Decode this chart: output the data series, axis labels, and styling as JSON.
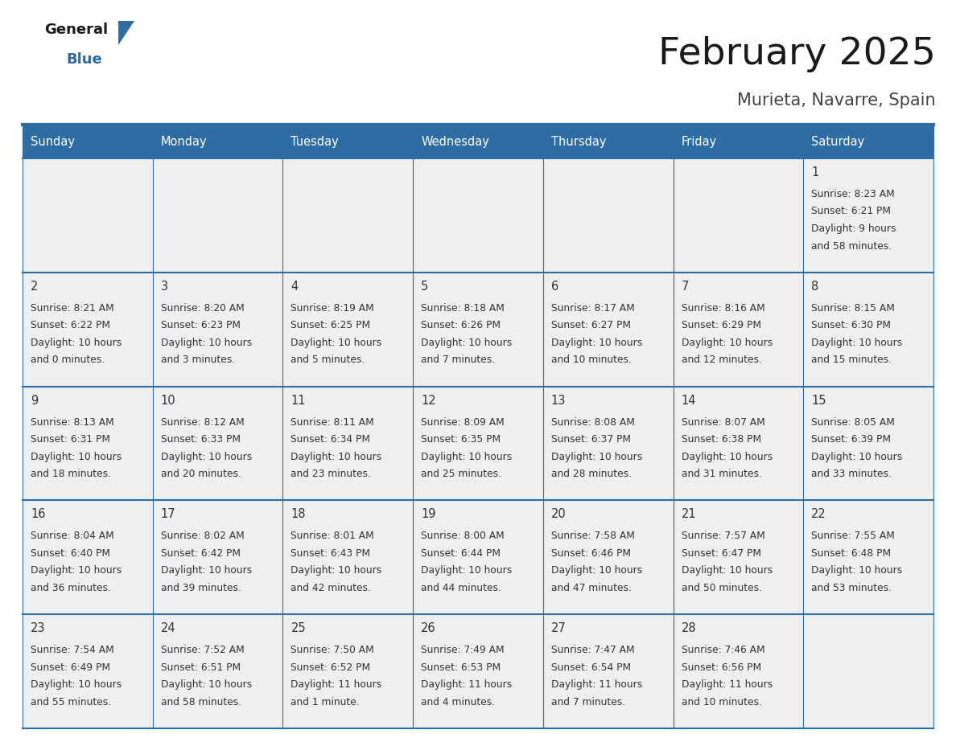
{
  "title": "February 2025",
  "subtitle": "Murieta, Navarre, Spain",
  "header_bg": "#2E6DA4",
  "header_text_color": "#FFFFFF",
  "cell_bg": "#EFEFEF",
  "day_number_color": "#333333",
  "text_color": "#333333",
  "border_color": "#2E6DA4",
  "days_of_week": [
    "Sunday",
    "Monday",
    "Tuesday",
    "Wednesday",
    "Thursday",
    "Friday",
    "Saturday"
  ],
  "weeks": [
    [
      {
        "day": null,
        "info": null
      },
      {
        "day": null,
        "info": null
      },
      {
        "day": null,
        "info": null
      },
      {
        "day": null,
        "info": null
      },
      {
        "day": null,
        "info": null
      },
      {
        "day": null,
        "info": null
      },
      {
        "day": 1,
        "info": "Sunrise: 8:23 AM\nSunset: 6:21 PM\nDaylight: 9 hours\nand 58 minutes."
      }
    ],
    [
      {
        "day": 2,
        "info": "Sunrise: 8:21 AM\nSunset: 6:22 PM\nDaylight: 10 hours\nand 0 minutes."
      },
      {
        "day": 3,
        "info": "Sunrise: 8:20 AM\nSunset: 6:23 PM\nDaylight: 10 hours\nand 3 minutes."
      },
      {
        "day": 4,
        "info": "Sunrise: 8:19 AM\nSunset: 6:25 PM\nDaylight: 10 hours\nand 5 minutes."
      },
      {
        "day": 5,
        "info": "Sunrise: 8:18 AM\nSunset: 6:26 PM\nDaylight: 10 hours\nand 7 minutes."
      },
      {
        "day": 6,
        "info": "Sunrise: 8:17 AM\nSunset: 6:27 PM\nDaylight: 10 hours\nand 10 minutes."
      },
      {
        "day": 7,
        "info": "Sunrise: 8:16 AM\nSunset: 6:29 PM\nDaylight: 10 hours\nand 12 minutes."
      },
      {
        "day": 8,
        "info": "Sunrise: 8:15 AM\nSunset: 6:30 PM\nDaylight: 10 hours\nand 15 minutes."
      }
    ],
    [
      {
        "day": 9,
        "info": "Sunrise: 8:13 AM\nSunset: 6:31 PM\nDaylight: 10 hours\nand 18 minutes."
      },
      {
        "day": 10,
        "info": "Sunrise: 8:12 AM\nSunset: 6:33 PM\nDaylight: 10 hours\nand 20 minutes."
      },
      {
        "day": 11,
        "info": "Sunrise: 8:11 AM\nSunset: 6:34 PM\nDaylight: 10 hours\nand 23 minutes."
      },
      {
        "day": 12,
        "info": "Sunrise: 8:09 AM\nSunset: 6:35 PM\nDaylight: 10 hours\nand 25 minutes."
      },
      {
        "day": 13,
        "info": "Sunrise: 8:08 AM\nSunset: 6:37 PM\nDaylight: 10 hours\nand 28 minutes."
      },
      {
        "day": 14,
        "info": "Sunrise: 8:07 AM\nSunset: 6:38 PM\nDaylight: 10 hours\nand 31 minutes."
      },
      {
        "day": 15,
        "info": "Sunrise: 8:05 AM\nSunset: 6:39 PM\nDaylight: 10 hours\nand 33 minutes."
      }
    ],
    [
      {
        "day": 16,
        "info": "Sunrise: 8:04 AM\nSunset: 6:40 PM\nDaylight: 10 hours\nand 36 minutes."
      },
      {
        "day": 17,
        "info": "Sunrise: 8:02 AM\nSunset: 6:42 PM\nDaylight: 10 hours\nand 39 minutes."
      },
      {
        "day": 18,
        "info": "Sunrise: 8:01 AM\nSunset: 6:43 PM\nDaylight: 10 hours\nand 42 minutes."
      },
      {
        "day": 19,
        "info": "Sunrise: 8:00 AM\nSunset: 6:44 PM\nDaylight: 10 hours\nand 44 minutes."
      },
      {
        "day": 20,
        "info": "Sunrise: 7:58 AM\nSunset: 6:46 PM\nDaylight: 10 hours\nand 47 minutes."
      },
      {
        "day": 21,
        "info": "Sunrise: 7:57 AM\nSunset: 6:47 PM\nDaylight: 10 hours\nand 50 minutes."
      },
      {
        "day": 22,
        "info": "Sunrise: 7:55 AM\nSunset: 6:48 PM\nDaylight: 10 hours\nand 53 minutes."
      }
    ],
    [
      {
        "day": 23,
        "info": "Sunrise: 7:54 AM\nSunset: 6:49 PM\nDaylight: 10 hours\nand 55 minutes."
      },
      {
        "day": 24,
        "info": "Sunrise: 7:52 AM\nSunset: 6:51 PM\nDaylight: 10 hours\nand 58 minutes."
      },
      {
        "day": 25,
        "info": "Sunrise: 7:50 AM\nSunset: 6:52 PM\nDaylight: 11 hours\nand 1 minute."
      },
      {
        "day": 26,
        "info": "Sunrise: 7:49 AM\nSunset: 6:53 PM\nDaylight: 11 hours\nand 4 minutes."
      },
      {
        "day": 27,
        "info": "Sunrise: 7:47 AM\nSunset: 6:54 PM\nDaylight: 11 hours\nand 7 minutes."
      },
      {
        "day": 28,
        "info": "Sunrise: 7:46 AM\nSunset: 6:56 PM\nDaylight: 11 hours\nand 10 minutes."
      },
      {
        "day": null,
        "info": null
      }
    ]
  ]
}
